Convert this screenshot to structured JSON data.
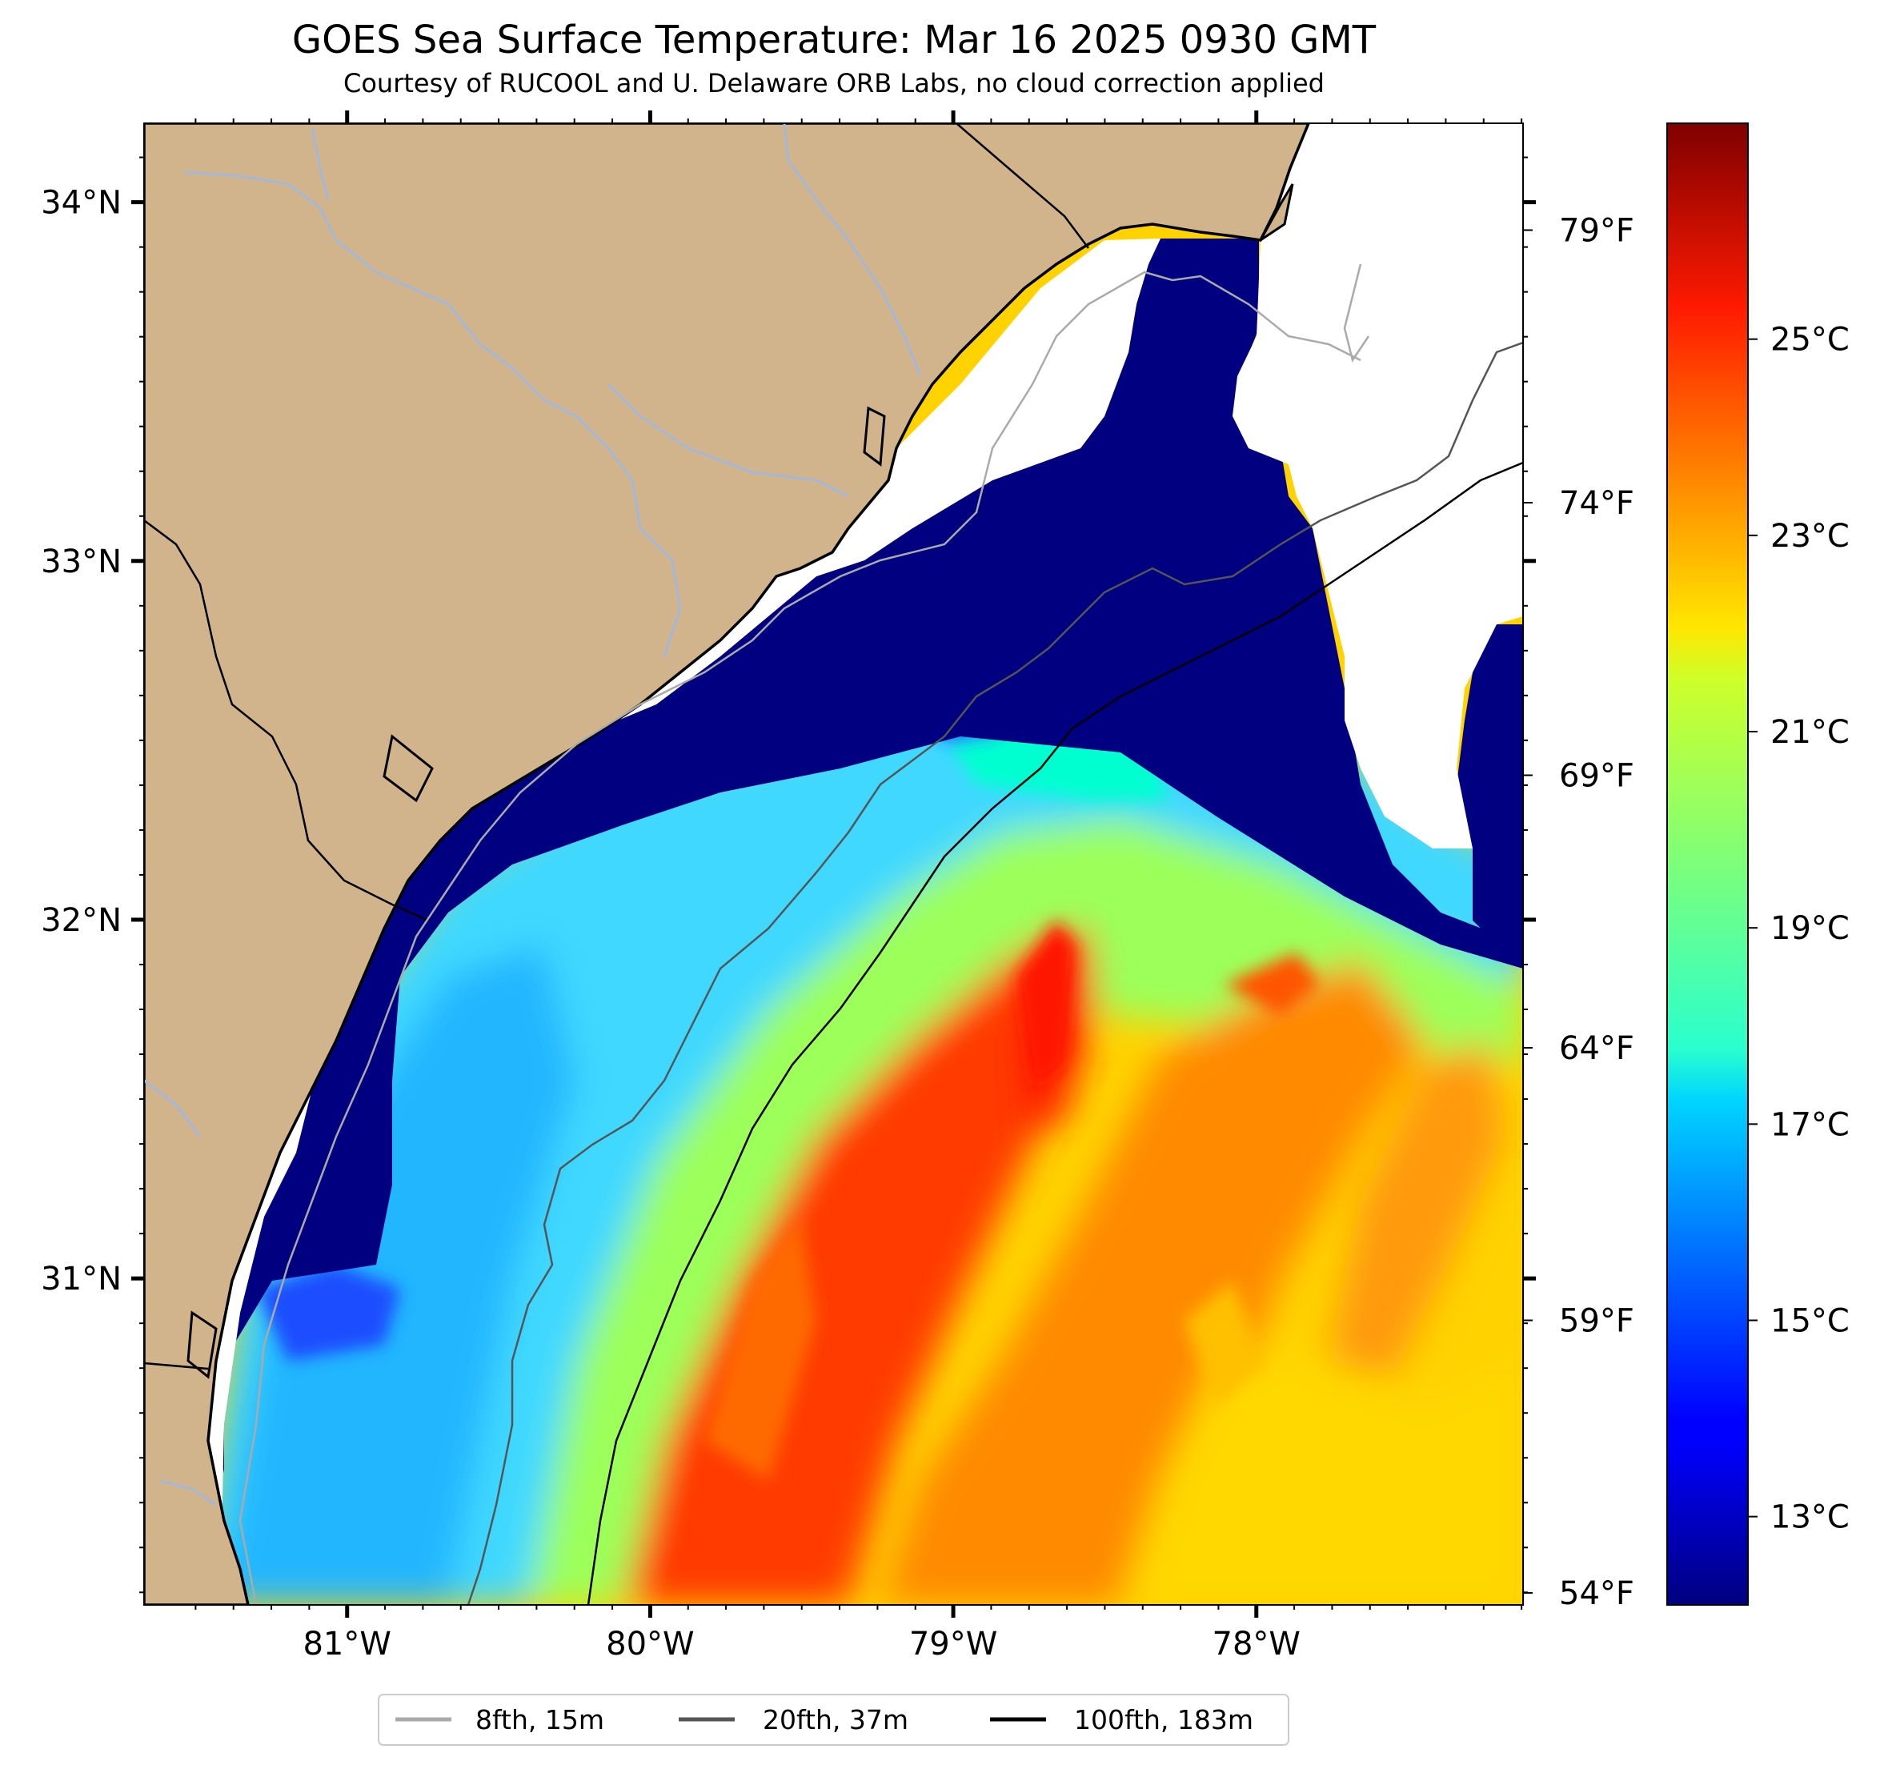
{
  "title": "GOES Sea Surface Temperature: Mar 16 2025 0930 GMT",
  "subtitle": "Courtesy of RUCOOL and U. Delaware ORB Labs, no cloud correction applied",
  "map": {
    "lon_range": [
      -81.67,
      -77.12
    ],
    "lat_range": [
      30.09,
      34.22
    ],
    "lon_ticks": [
      {
        "value": -81,
        "label": "81°W"
      },
      {
        "value": -80,
        "label": "80°W"
      },
      {
        "value": -79,
        "label": "79°W"
      },
      {
        "value": -78,
        "label": "78°W"
      }
    ],
    "lat_ticks": [
      {
        "value": 34,
        "label": "34°N"
      },
      {
        "value": 33,
        "label": "33°N"
      },
      {
        "value": 32,
        "label": "32°N"
      },
      {
        "value": 31,
        "label": "31°N"
      }
    ],
    "fahrenheit_ticks": [
      {
        "value": 79,
        "label": "79°F"
      },
      {
        "value": 74,
        "label": "74°F"
      },
      {
        "value": 69,
        "label": "69°F"
      },
      {
        "value": 64,
        "label": "64°F"
      },
      {
        "value": 59,
        "label": "59°F"
      },
      {
        "value": 54,
        "label": "54°F"
      }
    ],
    "colors": {
      "land": "#d2b48c",
      "cloud_gap": "#ffffff",
      "rivers": "#a3b8d8",
      "coast": "#000000"
    }
  },
  "colorbar": {
    "colormap": "jet",
    "range_c": [
      12.1,
      27.2
    ],
    "ticks": [
      {
        "value": 13,
        "label": "13°C"
      },
      {
        "value": 15,
        "label": "15°C"
      },
      {
        "value": 17,
        "label": "17°C"
      },
      {
        "value": 19,
        "label": "19°C"
      },
      {
        "value": 21,
        "label": "21°C"
      },
      {
        "value": 23,
        "label": "23°C"
      },
      {
        "value": 25,
        "label": "25°C"
      }
    ]
  },
  "legend": {
    "placement": "bottom-center",
    "items": [
      {
        "label": "8fth, 15m",
        "color": "#aaaaaa"
      },
      {
        "label": "20fth, 37m",
        "color": "#555555"
      },
      {
        "label": "100fth, 183m",
        "color": "#000000"
      }
    ]
  }
}
